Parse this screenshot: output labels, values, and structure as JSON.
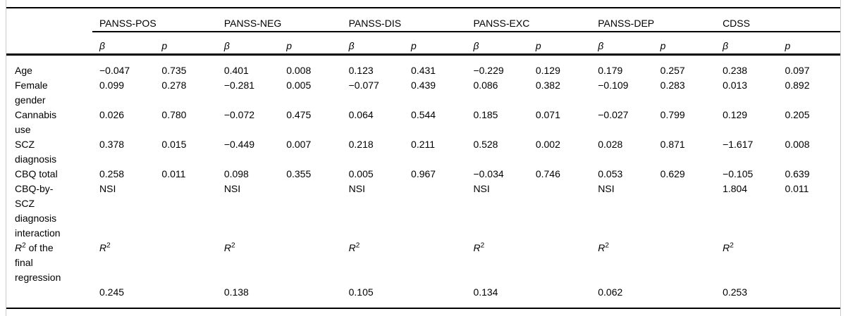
{
  "table": {
    "groups": [
      "PANSS-POS",
      "PANSS-NEG",
      "PANSS-DIS",
      "PANSS-EXC",
      "PANSS-DEP",
      "CDSS"
    ],
    "subheaders": {
      "beta": "β",
      "p": "p"
    },
    "rows": [
      {
        "label": "Age",
        "cells": [
          "−0.047",
          "0.735",
          "0.401",
          "0.008",
          "0.123",
          "0.431",
          "−0.229",
          "0.129",
          "0.179",
          "0.257",
          "0.238",
          "0.097"
        ]
      },
      {
        "label": "Female gender",
        "cells": [
          "0.099",
          "0.278",
          "−0.281",
          "0.005",
          "−0.077",
          "0.439",
          "0.086",
          "0.382",
          "−0.109",
          "0.283",
          "0.013",
          "0.892"
        ]
      },
      {
        "label": "Cannabis use",
        "cells": [
          "0.026",
          "0.780",
          "−0.072",
          "0.475",
          "0.064",
          "0.544",
          "0.185",
          "0.071",
          "−0.027",
          "0.799",
          "0.129",
          "0.205"
        ]
      },
      {
        "label": "SCZ diagnosis",
        "cells": [
          "0.378",
          "0.015",
          "−0.449",
          "0.007",
          "0.218",
          "0.211",
          "0.528",
          "0.002",
          "0.028",
          "0.871",
          "−1.617",
          "0.008"
        ]
      },
      {
        "label": "CBQ total",
        "cells": [
          "0.258",
          "0.011",
          "0.098",
          "0.355",
          "0.005",
          "0.967",
          "−0.034",
          "0.746",
          "0.053",
          "0.629",
          "−0.105",
          "0.639"
        ]
      },
      {
        "label": "CBQ-by-SCZ diagnosis interaction",
        "cells": [
          "NSI",
          "",
          "NSI",
          "",
          "NSI",
          "",
          "NSI",
          "",
          "NSI",
          "",
          "1.804",
          "0.011"
        ]
      },
      {
        "label": "R² of the final regression",
        "cells": [
          "R²",
          "",
          "R²",
          "",
          "R²",
          "",
          "R²",
          "",
          "R²",
          "",
          "R²",
          ""
        ]
      },
      {
        "label": "",
        "cells": [
          "0.245",
          "",
          "0.138",
          "",
          "0.105",
          "",
          "0.134",
          "",
          "0.062",
          "",
          "0.253",
          ""
        ]
      }
    ]
  }
}
